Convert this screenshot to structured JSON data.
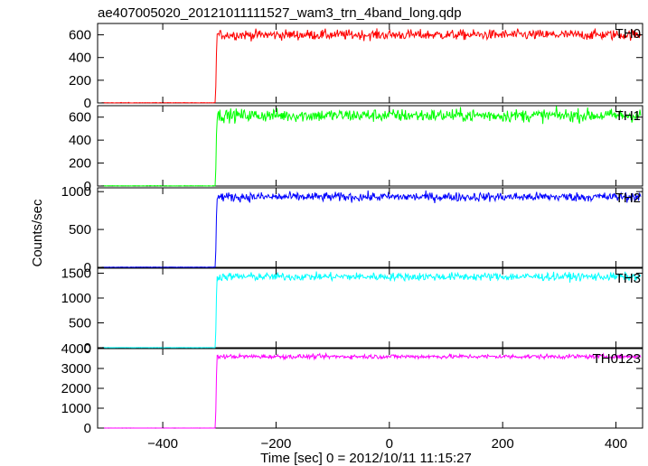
{
  "title": "ae407005020_20121011111527_wam3_trn_4band_long.qdp",
  "xlabel": "Time [sec] 0 = 2012/10/11 11:15:27",
  "ylabel": "Counts/sec",
  "chart_data": {
    "type": "line",
    "x": {
      "range": [
        -515,
        447
      ],
      "ticks": [
        -400,
        -200,
        0,
        200,
        400
      ],
      "tick_labels": [
        "−400",
        "−200",
        "0",
        "200",
        "400"
      ]
    },
    "onset_time": -307,
    "panels": [
      {
        "name": "TH0",
        "color": "#ff0000",
        "ylim": [
          0,
          700
        ],
        "yticks": [
          0,
          200,
          400,
          600
        ],
        "pre_level": 0,
        "post_level": 600,
        "noise": 22
      },
      {
        "name": "TH1",
        "color": "#00ff00",
        "ylim": [
          0,
          700
        ],
        "yticks": [
          0,
          200,
          400,
          600
        ],
        "pre_level": 0,
        "post_level": 615,
        "noise": 28
      },
      {
        "name": "TH2",
        "color": "#0000ff",
        "ylim": [
          0,
          1050
        ],
        "yticks": [
          0,
          500,
          1000
        ],
        "pre_level": 0,
        "post_level": 930,
        "noise": 30
      },
      {
        "name": "TH3",
        "color": "#00ffff",
        "ylim": [
          0,
          1600
        ],
        "yticks": [
          0,
          500,
          1000,
          1500
        ],
        "pre_level": 0,
        "post_level": 1430,
        "noise": 40
      },
      {
        "name": "TH0123",
        "color": "#ff00ff",
        "ylim": [
          0,
          4000
        ],
        "yticks": [
          0,
          1000,
          2000,
          3000,
          4000
        ],
        "pre_level": 0,
        "post_level": 3600,
        "noise": 55
      }
    ]
  }
}
